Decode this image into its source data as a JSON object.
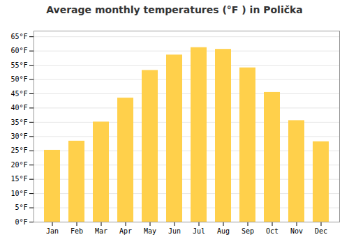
{
  "chart_data": {
    "type": "bar",
    "title": "Average monthly temperatures (°F ) in Polička",
    "categories": [
      "Jan",
      "Feb",
      "Mar",
      "Apr",
      "May",
      "Jun",
      "Jul",
      "Aug",
      "Sep",
      "Oct",
      "Nov",
      "Dec"
    ],
    "values": [
      25.2,
      28.4,
      35.1,
      43.5,
      53.2,
      58.6,
      61.2,
      60.6,
      54.1,
      45.5,
      35.6,
      28.2
    ],
    "color": "#FFD04B",
    "ylim": [
      0,
      67
    ],
    "yticks": [
      {
        "value": 0,
        "label": "0°F"
      },
      {
        "value": 5,
        "label": "5°F"
      },
      {
        "value": 10,
        "label": "10°F"
      },
      {
        "value": 15,
        "label": "15°F"
      },
      {
        "value": 20,
        "label": "20°F"
      },
      {
        "value": 25,
        "label": "25°F"
      },
      {
        "value": 30,
        "label": "30°F"
      },
      {
        "value": 35,
        "label": "35°F"
      },
      {
        "value": 40,
        "label": "40°F"
      },
      {
        "value": 45,
        "label": "45°F"
      },
      {
        "value": 50,
        "label": "50°F"
      },
      {
        "value": 55,
        "label": "55°F"
      },
      {
        "value": 60,
        "label": "60°F"
      },
      {
        "value": 65,
        "label": "65°F"
      }
    ],
    "grid": true
  }
}
